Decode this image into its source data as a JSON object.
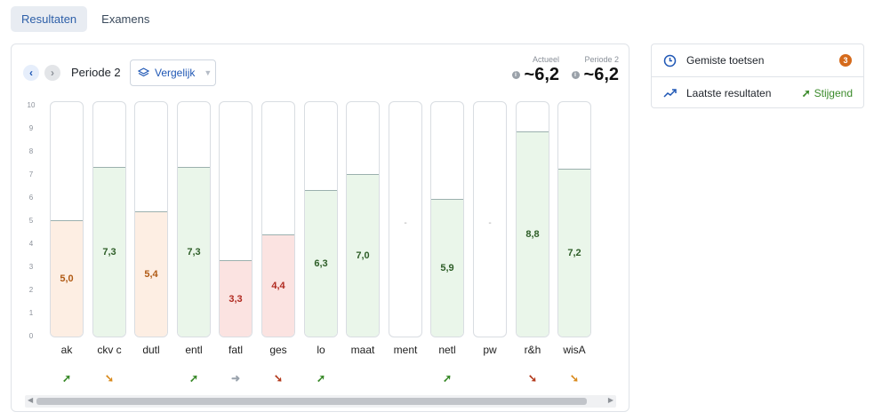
{
  "tabs": [
    {
      "label": "Resultaten",
      "active": true
    },
    {
      "label": "Examens",
      "active": false
    }
  ],
  "period": {
    "label": "Periode 2",
    "compare_label": "Vergelijk"
  },
  "averages": {
    "current_label": "Actueel",
    "current_value": "~6,2",
    "period_label": "Periode 2",
    "period_value": "~6,2"
  },
  "y_ticks": [
    "10",
    "9",
    "8",
    "7",
    "6",
    "5",
    "4",
    "3",
    "2",
    "1",
    "0"
  ],
  "subjects": [
    {
      "name": "ak",
      "grade": 5.0,
      "grade_label": "5,0",
      "status": "warn",
      "trend": "up",
      "trend_glyph": "➚"
    },
    {
      "name": "ckv c",
      "grade": 7.3,
      "grade_label": "7,3",
      "status": "good",
      "trend": "down",
      "trend_glyph": "➘"
    },
    {
      "name": "dutl",
      "grade": 5.4,
      "grade_label": "5,4",
      "status": "warn",
      "trend": "",
      "trend_glyph": ""
    },
    {
      "name": "entl",
      "grade": 7.3,
      "grade_label": "7,3",
      "status": "good",
      "trend": "up",
      "trend_glyph": "➚"
    },
    {
      "name": "fatl",
      "grade": 3.3,
      "grade_label": "3,3",
      "status": "bad",
      "trend": "flat",
      "trend_glyph": "➜"
    },
    {
      "name": "ges",
      "grade": 4.4,
      "grade_label": "4,4",
      "status": "bad",
      "trend": "down",
      "trend_glyph": "➘"
    },
    {
      "name": "lo",
      "grade": 6.3,
      "grade_label": "6,3",
      "status": "good",
      "trend": "up",
      "trend_glyph": "➚"
    },
    {
      "name": "maat",
      "grade": 7.0,
      "grade_label": "7,0",
      "status": "good",
      "trend": "",
      "trend_glyph": ""
    },
    {
      "name": "ment",
      "grade": null,
      "grade_label": "-",
      "status": "none",
      "trend": "",
      "trend_glyph": ""
    },
    {
      "name": "netl",
      "grade": 5.9,
      "grade_label": "5,9",
      "status": "good",
      "trend": "up",
      "trend_glyph": "➚"
    },
    {
      "name": "pw",
      "grade": null,
      "grade_label": "-",
      "status": "none",
      "trend": "",
      "trend_glyph": ""
    },
    {
      "name": "r&h",
      "grade": 8.8,
      "grade_label": "8,8",
      "status": "good",
      "trend": "down",
      "trend_glyph": "➘"
    },
    {
      "name": "wisA",
      "grade": 7.2,
      "grade_label": "7,2",
      "status": "good",
      "trend": "down",
      "trend_glyph": "➘"
    }
  ],
  "side": {
    "missed_label": "Gemiste toetsen",
    "missed_count": "3",
    "latest_label": "Laatste resultaten",
    "latest_trend": "Stijgend"
  },
  "colors": {
    "good_fill": "#eaf6ea",
    "good_text": "#2e5e28",
    "warn_fill": "#fdeee3",
    "warn_text": "#b05a14",
    "bad_fill": "#fbe3e1",
    "bad_text": "#b02a20",
    "trend_up": "#3a8a2a",
    "trend_down_red": "#b33a1c",
    "trend_down_orange": "#d98a1c",
    "trend_flat": "#9aa3ad",
    "accent": "#1f57b5"
  }
}
